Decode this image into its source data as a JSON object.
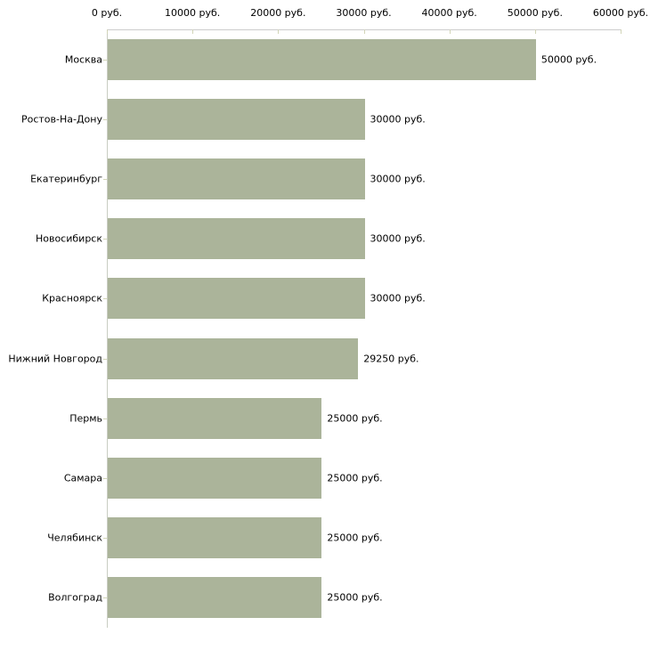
{
  "chart_data": {
    "type": "bar",
    "orientation": "horizontal",
    "title": "",
    "xlabel": "",
    "ylabel": "",
    "categories": [
      "Москва",
      "Ростов-На-Дону",
      "Екатеринбург",
      "Новосибирск",
      "Красноярск",
      "Нижний Новгород",
      "Пермь",
      "Самара",
      "Челябинск",
      "Волгоград"
    ],
    "values": [
      50000,
      30000,
      30000,
      30000,
      30000,
      29250,
      25000,
      25000,
      25000,
      25000
    ],
    "value_labels": [
      "50000 руб.",
      "30000 руб.",
      "30000 руб.",
      "30000 руб.",
      "30000 руб.",
      "29250 руб.",
      "25000 руб.",
      "25000 руб.",
      "25000 руб.",
      "25000 руб."
    ],
    "x_ticks": [
      0,
      10000,
      20000,
      30000,
      40000,
      50000,
      60000
    ],
    "x_tick_labels": [
      "0 руб.",
      "10000 руб.",
      "20000 руб.",
      "30000 руб.",
      "40000 руб.",
      "50000 руб.",
      "60000 руб."
    ],
    "xlim": [
      0,
      60000
    ],
    "grid": false,
    "legend": false,
    "colors": {
      "bar_fill": "#abb49a",
      "x_axis_line": "#cccccc",
      "y_axis_line": "#c9cdc2",
      "tick_mark": "#d2d5b8",
      "text": "#000000",
      "background": "#ffffff"
    }
  }
}
